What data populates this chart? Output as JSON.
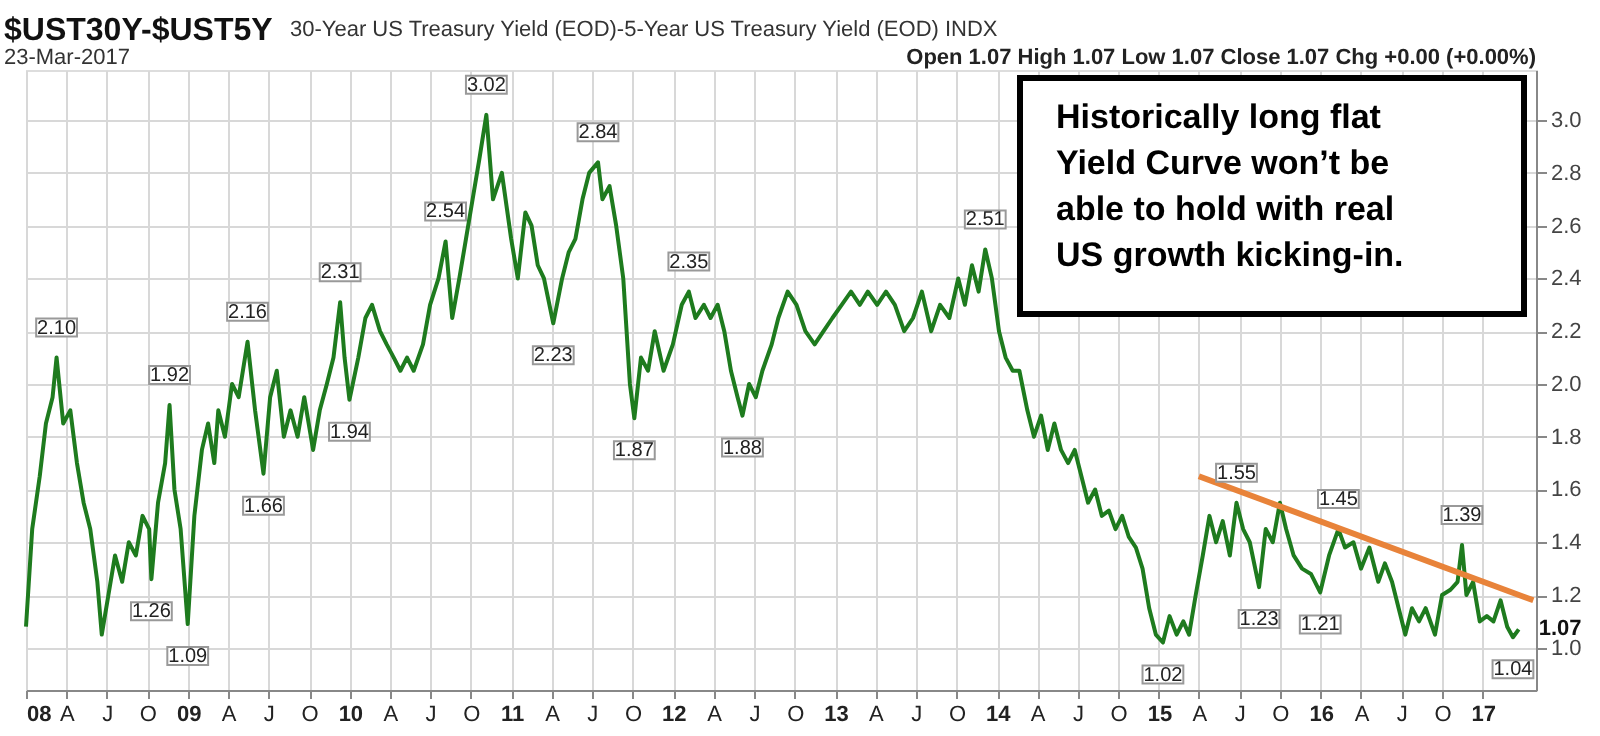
{
  "chart_data": {
    "type": "line",
    "title": "$UST30Y-$UST5Y",
    "subtitle": "30-Year US Treasury Yield (EOD)-5-Year US Treasury Yield (EOD) INDX",
    "annotations": [
      "23-Mar-2017",
      "Open 1.07  High 1.07  Low 1.07  Close 1.07  Chg +0.00 (+0.00%)",
      "Historically long flat Yield Curve won’t be able to hold with real US growth kicking-in.",
      {
        "text": "2.10",
        "x": "2008-03-10",
        "y": 2.1
      },
      {
        "text": "1.26",
        "x": "2008-10-10",
        "y": 1.26
      },
      {
        "text": "1.92",
        "x": "2008-11-20",
        "y": 1.92
      },
      {
        "text": "1.09",
        "x": "2008-12-31",
        "y": 1.09
      },
      {
        "text": "2.16",
        "x": "2009-05-15",
        "y": 2.16
      },
      {
        "text": "1.66",
        "x": "2009-06-20",
        "y": 1.66
      },
      {
        "text": "2.31",
        "x": "2009-12-10",
        "y": 2.31
      },
      {
        "text": "1.94",
        "x": "2009-12-31",
        "y": 1.94
      },
      {
        "text": "2.54",
        "x": "2010-08-05",
        "y": 2.54
      },
      {
        "text": "3.02",
        "x": "2010-11-05",
        "y": 3.02
      },
      {
        "text": "2.23",
        "x": "2011-04-05",
        "y": 2.23
      },
      {
        "text": "2.84",
        "x": "2011-07-15",
        "y": 2.84
      },
      {
        "text": "1.87",
        "x": "2011-10-05",
        "y": 1.87
      },
      {
        "text": "2.35",
        "x": "2012-02-05",
        "y": 2.35
      },
      {
        "text": "1.88",
        "x": "2012-06-05",
        "y": 1.88
      },
      {
        "text": "2.51",
        "x": "2013-12-05",
        "y": 2.51
      },
      {
        "text": "1.02",
        "x": "2015-01-10",
        "y": 1.02
      },
      {
        "text": "1.55",
        "x": "2015-06-25",
        "y": 1.55
      },
      {
        "text": "1.23",
        "x": "2015-08-15",
        "y": 1.23
      },
      {
        "text": "1.21",
        "x": "2015-12-31",
        "y": 1.21
      },
      {
        "text": "1.45",
        "x": "2016-02-10",
        "y": 1.45
      },
      {
        "text": "1.39",
        "x": "2016-11-15",
        "y": 1.39
      },
      {
        "text": "1.04",
        "x": "2017-03-10",
        "y": 1.04
      },
      {
        "text": "1.07",
        "x": "2017-03-23",
        "y": 1.07
      }
    ],
    "xlim": [
      "2008-01-01",
      "2017-05-01"
    ],
    "xticks": [
      {
        "value": "2008-01-01",
        "label": "08"
      },
      {
        "value": "2008-04-01",
        "label": "A"
      },
      {
        "value": "2008-07-01",
        "label": "J"
      },
      {
        "value": "2008-10-01",
        "label": "O"
      },
      {
        "value": "2009-01-01",
        "label": "09"
      },
      {
        "value": "2009-04-01",
        "label": "A"
      },
      {
        "value": "2009-07-01",
        "label": "J"
      },
      {
        "value": "2009-10-01",
        "label": "O"
      },
      {
        "value": "2010-01-01",
        "label": "10"
      },
      {
        "value": "2010-04-01",
        "label": "A"
      },
      {
        "value": "2010-07-01",
        "label": "J"
      },
      {
        "value": "2010-10-01",
        "label": "O"
      },
      {
        "value": "2011-01-01",
        "label": "11"
      },
      {
        "value": "2011-04-01",
        "label": "A"
      },
      {
        "value": "2011-07-01",
        "label": "J"
      },
      {
        "value": "2011-10-01",
        "label": "O"
      },
      {
        "value": "2012-01-01",
        "label": "12"
      },
      {
        "value": "2012-04-01",
        "label": "A"
      },
      {
        "value": "2012-07-01",
        "label": "J"
      },
      {
        "value": "2012-10-01",
        "label": "O"
      },
      {
        "value": "2013-01-01",
        "label": "13"
      },
      {
        "value": "2013-04-01",
        "label": "A"
      },
      {
        "value": "2013-07-01",
        "label": "J"
      },
      {
        "value": "2013-10-01",
        "label": "O"
      },
      {
        "value": "2014-01-01",
        "label": "14"
      },
      {
        "value": "2014-04-01",
        "label": "A"
      },
      {
        "value": "2014-07-01",
        "label": "J"
      },
      {
        "value": "2014-10-01",
        "label": "O"
      },
      {
        "value": "2015-01-01",
        "label": "15"
      },
      {
        "value": "2015-04-01",
        "label": "A"
      },
      {
        "value": "2015-07-01",
        "label": "J"
      },
      {
        "value": "2015-10-01",
        "label": "O"
      },
      {
        "value": "2016-01-01",
        "label": "16"
      },
      {
        "value": "2016-04-01",
        "label": "A"
      },
      {
        "value": "2016-07-01",
        "label": "J"
      },
      {
        "value": "2016-10-01",
        "label": "O"
      },
      {
        "value": "2017-01-01",
        "label": "17"
      }
    ],
    "ylim": [
      0.84,
      3.19
    ],
    "yticks": [
      {
        "value": 1,
        "label": "1.0"
      },
      1.2,
      1.4,
      1.6,
      1.8,
      {
        "value": 2,
        "label": "2.0"
      },
      2.2,
      2.4,
      2.6,
      2.8,
      {
        "value": 3,
        "label": "3.0"
      }
    ],
    "grid": true,
    "legend": false,
    "line_style": "solid",
    "series": [
      {
        "color": "#1e7b1e",
        "x": [
          "2008-01-01",
          "2008-01-15",
          "2008-02-01",
          "2008-02-15",
          "2008-03-01",
          "2008-03-10",
          "2008-03-25",
          "2008-04-10",
          "2008-04-25",
          "2008-05-10",
          "2008-05-25",
          "2008-06-10",
          "2008-06-20",
          "2008-07-05",
          "2008-07-20",
          "2008-08-05",
          "2008-08-20",
          "2008-09-05",
          "2008-09-20",
          "2008-10-05",
          "2008-10-10",
          "2008-10-25",
          "2008-11-10",
          "2008-11-20",
          "2008-12-01",
          "2008-12-15",
          "2008-12-31",
          "2009-01-15",
          "2009-02-01",
          "2009-02-15",
          "2009-03-01",
          "2009-03-10",
          "2009-03-25",
          "2009-04-10",
          "2009-04-25",
          "2009-05-15",
          "2009-06-01",
          "2009-06-20",
          "2009-07-05",
          "2009-07-20",
          "2009-08-05",
          "2009-08-20",
          "2009-09-05",
          "2009-09-20",
          "2009-10-10",
          "2009-10-25",
          "2009-11-10",
          "2009-11-25",
          "2009-12-10",
          "2009-12-20",
          "2009-12-31",
          "2010-01-20",
          "2010-02-05",
          "2010-02-20",
          "2010-03-10",
          "2010-03-25",
          "2010-04-10",
          "2010-04-25",
          "2010-05-10",
          "2010-05-25",
          "2010-06-15",
          "2010-07-01",
          "2010-07-20",
          "2010-08-05",
          "2010-08-20",
          "2010-09-05",
          "2010-09-20",
          "2010-10-05",
          "2010-10-20",
          "2010-11-05",
          "2010-11-20",
          "2010-12-10",
          "2010-12-31",
          "2011-01-15",
          "2011-02-01",
          "2011-02-15",
          "2011-03-01",
          "2011-03-15",
          "2011-04-05",
          "2011-04-25",
          "2011-05-10",
          "2011-05-25",
          "2011-06-10",
          "2011-06-25",
          "2011-07-15",
          "2011-07-25",
          "2011-08-10",
          "2011-08-25",
          "2011-09-10",
          "2011-09-25",
          "2011-10-05",
          "2011-10-20",
          "2011-11-05",
          "2011-11-20",
          "2011-12-10",
          "2011-12-31",
          "2012-01-20",
          "2012-02-05",
          "2012-02-20",
          "2012-03-10",
          "2012-03-25",
          "2012-04-10",
          "2012-04-25",
          "2012-05-10",
          "2012-05-25",
          "2012-06-05",
          "2012-06-20",
          "2012-07-05",
          "2012-07-20",
          "2012-08-10",
          "2012-08-25",
          "2012-09-15",
          "2012-10-05",
          "2012-10-25",
          "2012-11-15",
          "2012-12-05",
          "2012-12-25",
          "2013-01-15",
          "2013-02-05",
          "2013-02-25",
          "2013-03-15",
          "2013-04-05",
          "2013-04-25",
          "2013-05-15",
          "2013-06-05",
          "2013-06-25",
          "2013-07-15",
          "2013-08-05",
          "2013-08-25",
          "2013-09-15",
          "2013-10-05",
          "2013-10-20",
          "2013-11-05",
          "2013-11-20",
          "2013-12-05",
          "2013-12-20",
          "2014-01-05",
          "2014-01-20",
          "2014-02-05",
          "2014-02-20",
          "2014-03-10",
          "2014-03-25",
          "2014-04-10",
          "2014-04-25",
          "2014-05-10",
          "2014-05-25",
          "2014-06-10",
          "2014-06-25",
          "2014-07-10",
          "2014-07-25",
          "2014-08-10",
          "2014-08-25",
          "2014-09-10",
          "2014-09-25",
          "2014-10-10",
          "2014-10-25",
          "2014-11-10",
          "2014-11-25",
          "2014-12-10",
          "2014-12-25",
          "2015-01-10",
          "2015-01-25",
          "2015-02-10",
          "2015-02-25",
          "2015-03-10",
          "2015-03-25",
          "2015-04-10",
          "2015-04-25",
          "2015-05-10",
          "2015-05-25",
          "2015-06-10",
          "2015-06-25",
          "2015-07-10",
          "2015-07-25",
          "2015-08-15",
          "2015-08-30",
          "2015-09-15",
          "2015-10-01",
          "2015-10-15",
          "2015-11-01",
          "2015-11-20",
          "2015-12-10",
          "2015-12-31",
          "2016-01-20",
          "2016-02-10",
          "2016-02-25",
          "2016-03-15",
          "2016-04-01",
          "2016-04-20",
          "2016-05-10",
          "2016-05-25",
          "2016-06-10",
          "2016-06-25",
          "2016-07-10",
          "2016-07-25",
          "2016-08-10",
          "2016-08-25",
          "2016-09-15",
          "2016-10-01",
          "2016-10-20",
          "2016-11-05",
          "2016-11-15",
          "2016-11-25",
          "2016-12-10",
          "2016-12-25",
          "2017-01-10",
          "2017-01-25",
          "2017-02-10",
          "2017-02-25",
          "2017-03-10",
          "2017-03-23"
        ],
        "values": [
          1.08,
          1.45,
          1.65,
          1.85,
          1.95,
          2.1,
          1.85,
          1.9,
          1.7,
          1.55,
          1.45,
          1.25,
          1.05,
          1.2,
          1.35,
          1.25,
          1.4,
          1.35,
          1.5,
          1.45,
          1.26,
          1.55,
          1.7,
          1.92,
          1.6,
          1.45,
          1.09,
          1.5,
          1.75,
          1.85,
          1.7,
          1.9,
          1.8,
          2.0,
          1.95,
          2.16,
          1.9,
          1.66,
          1.95,
          2.05,
          1.8,
          1.9,
          1.8,
          1.95,
          1.75,
          1.9,
          2.0,
          2.1,
          2.31,
          2.1,
          1.94,
          2.1,
          2.25,
          2.3,
          2.2,
          2.15,
          2.1,
          2.05,
          2.1,
          2.05,
          2.15,
          2.3,
          2.4,
          2.54,
          2.25,
          2.4,
          2.55,
          2.7,
          2.85,
          3.02,
          2.7,
          2.8,
          2.55,
          2.4,
          2.65,
          2.6,
          2.45,
          2.4,
          2.23,
          2.4,
          2.5,
          2.55,
          2.7,
          2.8,
          2.84,
          2.7,
          2.75,
          2.6,
          2.4,
          2.0,
          1.87,
          2.1,
          2.05,
          2.2,
          2.05,
          2.15,
          2.3,
          2.35,
          2.25,
          2.3,
          2.25,
          2.3,
          2.2,
          2.05,
          1.95,
          1.88,
          2.0,
          1.95,
          2.05,
          2.15,
          2.25,
          2.35,
          2.3,
          2.2,
          2.15,
          2.2,
          2.25,
          2.3,
          2.35,
          2.3,
          2.35,
          2.3,
          2.35,
          2.3,
          2.2,
          2.25,
          2.35,
          2.2,
          2.3,
          2.25,
          2.4,
          2.3,
          2.45,
          2.35,
          2.51,
          2.4,
          2.2,
          2.1,
          2.05,
          2.05,
          1.9,
          1.8,
          1.88,
          1.75,
          1.85,
          1.75,
          1.7,
          1.75,
          1.65,
          1.55,
          1.6,
          1.5,
          1.52,
          1.45,
          1.5,
          1.42,
          1.38,
          1.3,
          1.15,
          1.05,
          1.02,
          1.12,
          1.05,
          1.1,
          1.05,
          1.2,
          1.35,
          1.5,
          1.4,
          1.48,
          1.35,
          1.55,
          1.45,
          1.4,
          1.23,
          1.45,
          1.4,
          1.55,
          1.45,
          1.35,
          1.3,
          1.28,
          1.21,
          1.35,
          1.45,
          1.38,
          1.4,
          1.3,
          1.38,
          1.25,
          1.32,
          1.25,
          1.15,
          1.05,
          1.15,
          1.1,
          1.15,
          1.05,
          1.2,
          1.22,
          1.25,
          1.39,
          1.2,
          1.25,
          1.1,
          1.12,
          1.1,
          1.18,
          1.08,
          1.04,
          1.07
        ]
      },
      {
        "type": "line",
        "color": "#e8833a",
        "x": [
          "2015-04-01",
          "2017-04-25"
        ],
        "values": [
          1.65,
          1.18
        ]
      }
    ]
  }
}
